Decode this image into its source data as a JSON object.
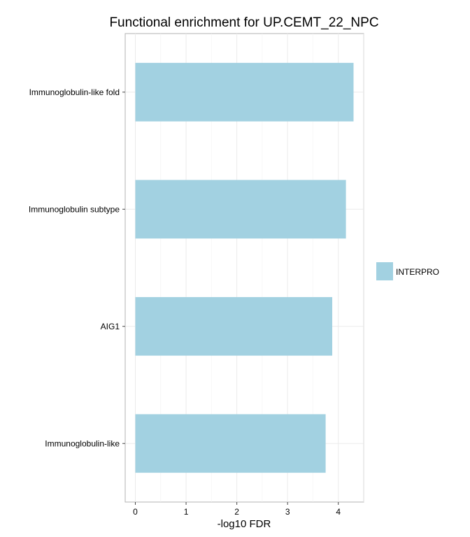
{
  "chart_data": {
    "type": "bar",
    "orientation": "horizontal",
    "title": "Functional enrichment for UP.CEMT_22_NPC",
    "xlabel": "-log10 FDR",
    "ylabel": "",
    "categories": [
      "Immunoglobulin-like fold",
      "Immunoglobulin subtype",
      "AIG1",
      "Immunoglobulin-like"
    ],
    "series": [
      {
        "name": "INTERPRO",
        "values": [
          4.3,
          4.15,
          3.88,
          3.75
        ],
        "color": "#a2d1e1"
      }
    ],
    "xlim": [
      -0.2,
      4.5
    ],
    "xticks": [
      "0",
      "1",
      "2",
      "3",
      "4"
    ],
    "grid": true,
    "legend_position": "right"
  }
}
